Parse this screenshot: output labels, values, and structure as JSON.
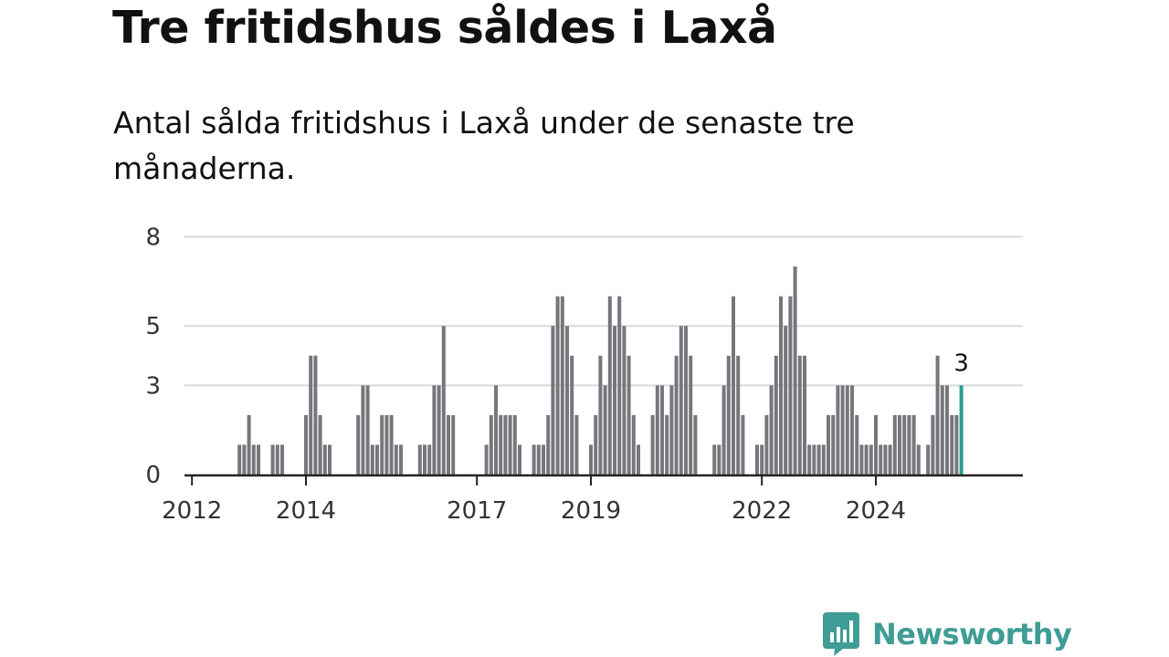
{
  "title": "Tre fritidshus såldes i Laxå",
  "subtitle": "Antal sålda fritidshus i Laxå under de senaste tre månaderna.",
  "brand": {
    "name": "Newsworthy",
    "icon": "newsworthy-chart-icon",
    "color": "#3f9d95"
  },
  "colors": {
    "bar": "#77767d",
    "highlight": "#2a9d8f",
    "grid": "#d9d9d9",
    "axis": "#222222"
  },
  "chart_data": {
    "type": "bar",
    "x_start": "2011-12",
    "x_interval": "month",
    "x_tick_labels": [
      "2012",
      "2014",
      "2017",
      "2019",
      "2022",
      "2024"
    ],
    "y_ticks": [
      "0",
      "3",
      "5",
      "8"
    ],
    "ylim": [
      0,
      9
    ],
    "grid": true,
    "highlight_last": true,
    "highlight_label": "3",
    "values": [
      0,
      0,
      0,
      0,
      0,
      0,
      0,
      0,
      0,
      0,
      0,
      1,
      1,
      2,
      1,
      1,
      0,
      0,
      1,
      1,
      1,
      0,
      0,
      0,
      0,
      2,
      4,
      4,
      2,
      1,
      1,
      0,
      0,
      0,
      0,
      0,
      2,
      3,
      3,
      1,
      1,
      2,
      2,
      2,
      1,
      1,
      0,
      0,
      0,
      1,
      1,
      1,
      3,
      3,
      5,
      2,
      2,
      0,
      0,
      0,
      0,
      0,
      0,
      1,
      2,
      3,
      2,
      2,
      2,
      2,
      1,
      0,
      0,
      1,
      1,
      1,
      2,
      5,
      6,
      6,
      5,
      4,
      2,
      0,
      0,
      1,
      2,
      4,
      3,
      6,
      5,
      6,
      5,
      4,
      2,
      1,
      0,
      0,
      2,
      3,
      3,
      2,
      3,
      4,
      5,
      5,
      4,
      2,
      0,
      0,
      0,
      1,
      1,
      3,
      4,
      6,
      4,
      2,
      0,
      0,
      1,
      1,
      2,
      3,
      4,
      6,
      5,
      6,
      7,
      4,
      4,
      1,
      1,
      1,
      1,
      2,
      2,
      3,
      3,
      3,
      3,
      2,
      1,
      1,
      1,
      2,
      1,
      1,
      1,
      2,
      2,
      2,
      2,
      2,
      1,
      0,
      1,
      2,
      4,
      3,
      3,
      2,
      2,
      3
    ]
  }
}
